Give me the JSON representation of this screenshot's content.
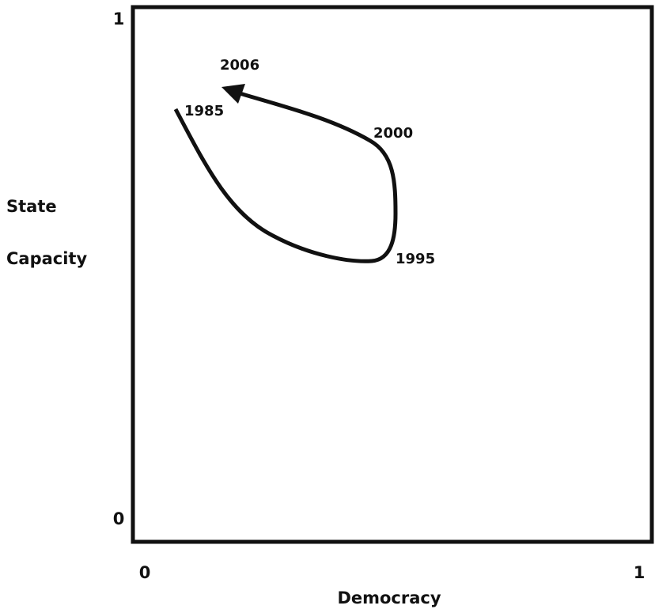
{
  "axes": {
    "x_label": "Democracy",
    "y_label_lines": [
      "State",
      "Capacity"
    ],
    "x_ticks": [
      "0",
      "1"
    ],
    "y_ticks": [
      "0",
      "1"
    ]
  },
  "annotations": [
    "1985",
    "1995",
    "2000",
    "2006"
  ]
}
